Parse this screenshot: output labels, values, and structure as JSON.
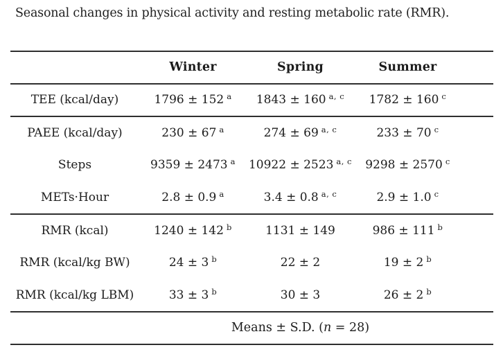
{
  "title": "Seasonal changes in physical activity and resting metabolic rate (RMR).",
  "colors": {
    "background": "#ffffff",
    "text": "#1c1c1c",
    "rule": "#2e2e2e"
  },
  "table": {
    "columns": {
      "c1": "Winter",
      "c2": "Spring",
      "c3": "Summer"
    },
    "rows": [
      {
        "label": "TEE (kcal/day)",
        "cells": [
          {
            "value": "1796 ± 152",
            "sup": "a"
          },
          {
            "value": "1843 ± 160",
            "sup": "a, c"
          },
          {
            "value": "1782 ± 160",
            "sup": "c"
          }
        ]
      },
      {
        "label": "PAEE (kcal/day)",
        "cells": [
          {
            "value": "230 ± 67",
            "sup": "a"
          },
          {
            "value": "274 ± 69",
            "sup": "a, c"
          },
          {
            "value": "233 ± 70",
            "sup": "c"
          }
        ]
      },
      {
        "label": "Steps",
        "cells": [
          {
            "value": "9359 ± 2473",
            "sup": "a"
          },
          {
            "value": "10922 ± 2523",
            "sup": "a, c"
          },
          {
            "value": "9298 ± 2570",
            "sup": "c"
          }
        ]
      },
      {
        "label": "METs·Hour",
        "cells": [
          {
            "value": "2.8 ± 0.9",
            "sup": "a"
          },
          {
            "value": "3.4 ± 0.8",
            "sup": "a, c"
          },
          {
            "value": "2.9 ± 1.0",
            "sup": "c"
          }
        ]
      },
      {
        "label": "RMR (kcal)",
        "cells": [
          {
            "value": "1240 ± 142",
            "sup": "b"
          },
          {
            "value": "1131 ± 149",
            "sup": ""
          },
          {
            "value": "986 ± 111",
            "sup": "b"
          }
        ]
      },
      {
        "label": "RMR (kcal/kg BW)",
        "cells": [
          {
            "value": "24 ± 3",
            "sup": "b"
          },
          {
            "value": "22 ± 2",
            "sup": ""
          },
          {
            "value": "19 ± 2",
            "sup": "b"
          }
        ]
      },
      {
        "label": "RMR (kcal/kg LBM)",
        "cells": [
          {
            "value": "33 ± 3",
            "sup": "b"
          },
          {
            "value": "30 ± 3",
            "sup": ""
          },
          {
            "value": "26 ± 2",
            "sup": "b"
          }
        ]
      }
    ],
    "footer": {
      "prefix": "Means ± S.D. (",
      "n": "n",
      "suffix": " = 28)"
    }
  }
}
